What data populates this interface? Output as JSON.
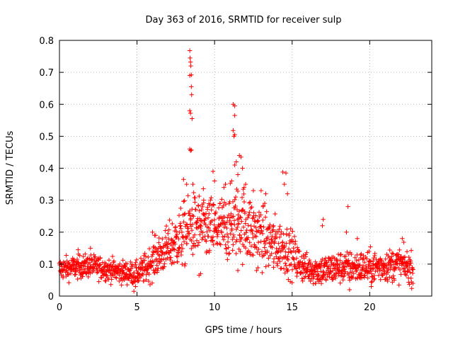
{
  "chart_data": {
    "type": "scatter",
    "title": "Day 363 of 2016, SRMTID for receiver sulp",
    "xlabel": "GPS time / hours",
    "ylabel": "SRMTID / TECUs",
    "xlim": [
      0,
      24
    ],
    "ylim": [
      0,
      0.8
    ],
    "xticks": [
      0,
      5,
      10,
      15,
      20
    ],
    "xtick_labels": [
      "0",
      "5",
      "10",
      "15",
      "20"
    ],
    "yticks": [
      0,
      0.1,
      0.2,
      0.3,
      0.4,
      0.5,
      0.6,
      0.7,
      0.8
    ],
    "ytick_labels": [
      "0",
      "0.1",
      "0.2",
      "0.3",
      "0.4",
      "0.5",
      "0.6",
      "0.7",
      "0.8"
    ],
    "grid": true,
    "marker": "+",
    "color": "#ff0000",
    "x_range_data": [
      0,
      22.8
    ],
    "sample_count": 1500,
    "trend": [
      {
        "x": 0,
        "y": 0.085
      },
      {
        "x": 1,
        "y": 0.09
      },
      {
        "x": 2,
        "y": 0.095
      },
      {
        "x": 3,
        "y": 0.085
      },
      {
        "x": 4,
        "y": 0.075
      },
      {
        "x": 5,
        "y": 0.07
      },
      {
        "x": 5.5,
        "y": 0.085
      },
      {
        "x": 6,
        "y": 0.11
      },
      {
        "x": 6.5,
        "y": 0.13
      },
      {
        "x": 7,
        "y": 0.15
      },
      {
        "x": 7.5,
        "y": 0.17
      },
      {
        "x": 8,
        "y": 0.19
      },
      {
        "x": 8.5,
        "y": 0.22
      },
      {
        "x": 9,
        "y": 0.22
      },
      {
        "x": 9.5,
        "y": 0.21
      },
      {
        "x": 10,
        "y": 0.21
      },
      {
        "x": 10.5,
        "y": 0.21
      },
      {
        "x": 11,
        "y": 0.22
      },
      {
        "x": 11.5,
        "y": 0.24
      },
      {
        "x": 12,
        "y": 0.22
      },
      {
        "x": 12.5,
        "y": 0.2
      },
      {
        "x": 13,
        "y": 0.19
      },
      {
        "x": 13.5,
        "y": 0.17
      },
      {
        "x": 14,
        "y": 0.16
      },
      {
        "x": 14.5,
        "y": 0.15
      },
      {
        "x": 15,
        "y": 0.13
      },
      {
        "x": 15.5,
        "y": 0.1
      },
      {
        "x": 16,
        "y": 0.085
      },
      {
        "x": 17,
        "y": 0.08
      },
      {
        "x": 18,
        "y": 0.09
      },
      {
        "x": 19,
        "y": 0.09
      },
      {
        "x": 20,
        "y": 0.09
      },
      {
        "x": 21,
        "y": 0.095
      },
      {
        "x": 22,
        "y": 0.1
      },
      {
        "x": 22.8,
        "y": 0.085
      }
    ],
    "spread": [
      {
        "x": 0,
        "y": 0.025
      },
      {
        "x": 5,
        "y": 0.025
      },
      {
        "x": 6,
        "y": 0.04
      },
      {
        "x": 7,
        "y": 0.05
      },
      {
        "x": 8,
        "y": 0.07
      },
      {
        "x": 10,
        "y": 0.07
      },
      {
        "x": 12,
        "y": 0.08
      },
      {
        "x": 14,
        "y": 0.06
      },
      {
        "x": 15,
        "y": 0.05
      },
      {
        "x": 16,
        "y": 0.03
      },
      {
        "x": 17,
        "y": 0.035
      },
      {
        "x": 22.8,
        "y": 0.035
      }
    ],
    "notable_points": [
      {
        "x": 8.4,
        "y": 0.768
      },
      {
        "x": 8.42,
        "y": 0.745
      },
      {
        "x": 8.45,
        "y": 0.732
      },
      {
        "x": 8.47,
        "y": 0.72
      },
      {
        "x": 8.4,
        "y": 0.69
      },
      {
        "x": 8.5,
        "y": 0.692
      },
      {
        "x": 8.5,
        "y": 0.655
      },
      {
        "x": 8.52,
        "y": 0.63
      },
      {
        "x": 8.4,
        "y": 0.58
      },
      {
        "x": 8.45,
        "y": 0.572
      },
      {
        "x": 8.55,
        "y": 0.555
      },
      {
        "x": 8.4,
        "y": 0.46
      },
      {
        "x": 8.45,
        "y": 0.455
      },
      {
        "x": 8.5,
        "y": 0.457
      },
      {
        "x": 11.2,
        "y": 0.6
      },
      {
        "x": 11.3,
        "y": 0.595
      },
      {
        "x": 11.3,
        "y": 0.565
      },
      {
        "x": 11.2,
        "y": 0.518
      },
      {
        "x": 11.3,
        "y": 0.505
      },
      {
        "x": 11.25,
        "y": 0.5
      },
      {
        "x": 11.6,
        "y": 0.44
      },
      {
        "x": 11.7,
        "y": 0.435
      },
      {
        "x": 11.4,
        "y": 0.42
      },
      {
        "x": 11.3,
        "y": 0.41
      },
      {
        "x": 11.8,
        "y": 0.4
      },
      {
        "x": 11.5,
        "y": 0.38
      },
      {
        "x": 11.1,
        "y": 0.36
      },
      {
        "x": 12.0,
        "y": 0.35
      },
      {
        "x": 11.9,
        "y": 0.34
      },
      {
        "x": 9.9,
        "y": 0.39
      },
      {
        "x": 10.0,
        "y": 0.36
      },
      {
        "x": 10.6,
        "y": 0.34
      },
      {
        "x": 10.7,
        "y": 0.35
      },
      {
        "x": 8.0,
        "y": 0.365
      },
      {
        "x": 8.2,
        "y": 0.35
      },
      {
        "x": 8.6,
        "y": 0.35
      },
      {
        "x": 14.4,
        "y": 0.388
      },
      {
        "x": 14.6,
        "y": 0.385
      },
      {
        "x": 14.5,
        "y": 0.35
      },
      {
        "x": 14.7,
        "y": 0.32
      },
      {
        "x": 13.0,
        "y": 0.33
      },
      {
        "x": 13.3,
        "y": 0.32
      },
      {
        "x": 12.5,
        "y": 0.33
      },
      {
        "x": 9.3,
        "y": 0.3
      },
      {
        "x": 18.6,
        "y": 0.28
      },
      {
        "x": 17.0,
        "y": 0.24
      },
      {
        "x": 16.95,
        "y": 0.22
      },
      {
        "x": 18.5,
        "y": 0.2
      },
      {
        "x": 19.2,
        "y": 0.18
      },
      {
        "x": 22.1,
        "y": 0.18
      },
      {
        "x": 2.0,
        "y": 0.15
      },
      {
        "x": 1.2,
        "y": 0.145
      },
      {
        "x": 6.0,
        "y": 0.2
      },
      {
        "x": 6.2,
        "y": 0.19
      },
      {
        "x": 9.0,
        "y": 0.065
      },
      {
        "x": 9.1,
        "y": 0.07
      },
      {
        "x": 4.8,
        "y": 0.015
      },
      {
        "x": 4.9,
        "y": 0.03
      },
      {
        "x": 16.5,
        "y": 0.04
      },
      {
        "x": 18.7,
        "y": 0.02
      },
      {
        "x": 20.1,
        "y": 0.03
      },
      {
        "x": 11.5,
        "y": 0.08
      },
      {
        "x": 12.7,
        "y": 0.08
      },
      {
        "x": 13.8,
        "y": 0.09
      }
    ]
  }
}
